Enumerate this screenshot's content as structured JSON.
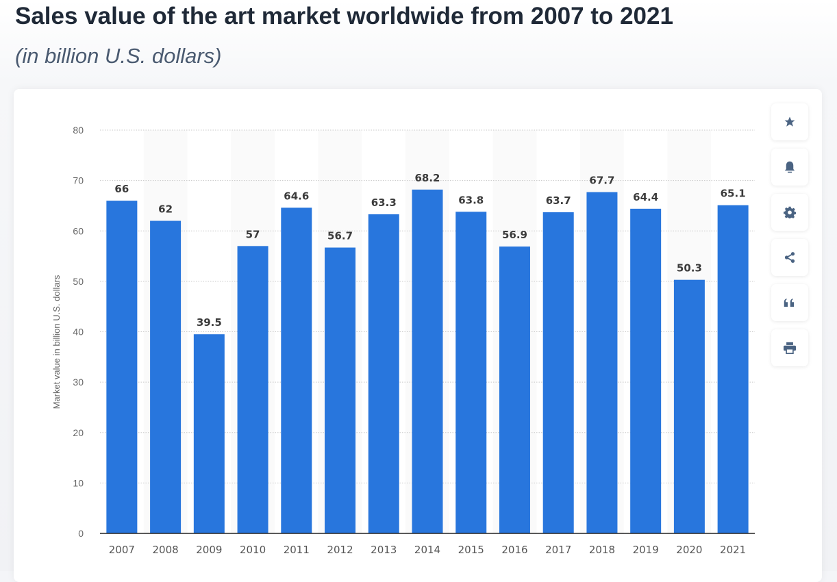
{
  "title": "Sales value of the art market worldwide from 2007 to 2021",
  "subtitle": "(in billion U.S. dollars)",
  "toolbar": [
    {
      "icon": "star-icon"
    },
    {
      "icon": "bell-icon"
    },
    {
      "icon": "gear-icon"
    },
    {
      "icon": "share-icon"
    },
    {
      "icon": "quote-icon"
    },
    {
      "icon": "print-icon"
    }
  ],
  "colors": {
    "bar": "#2876dd",
    "icon": "#4a6382"
  },
  "chart_data": {
    "type": "bar",
    "title": "Sales value of the art market worldwide from 2007 to 2021",
    "subtitle": "(in billion U.S. dollars)",
    "xlabel": "",
    "ylabel": "Market value in billion U.S. dollars",
    "categories": [
      "2007",
      "2008",
      "2009",
      "2010",
      "2011",
      "2012",
      "2013",
      "2014",
      "2015",
      "2016",
      "2017",
      "2018",
      "2019",
      "2020",
      "2021"
    ],
    "values": [
      66,
      62,
      39.5,
      57,
      64.6,
      56.7,
      63.3,
      68.2,
      63.8,
      56.9,
      63.7,
      67.7,
      64.4,
      50.3,
      65.1
    ],
    "ylim": [
      0,
      80
    ],
    "yticks": [
      0,
      10,
      20,
      30,
      40,
      50,
      60,
      70,
      80
    ],
    "grid": true,
    "data_labels": true
  }
}
